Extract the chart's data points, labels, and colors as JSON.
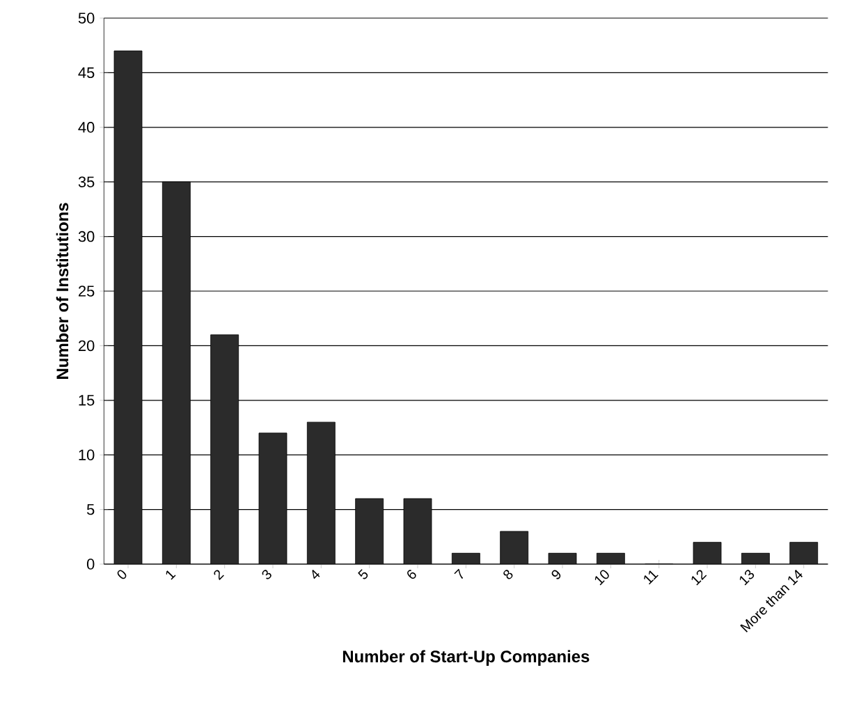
{
  "chart_data": {
    "type": "bar",
    "xlabel": "Number of Start-Up Companies",
    "ylabel": "Number of Institutions",
    "categories": [
      "0",
      "1",
      "2",
      "3",
      "4",
      "5",
      "6",
      "7",
      "8",
      "9",
      "10",
      "11",
      "12",
      "13",
      "More than 14"
    ],
    "values": [
      47,
      35,
      21,
      12,
      13,
      6,
      6,
      1,
      3,
      1,
      1,
      0,
      2,
      1,
      2
    ],
    "color": "#2b2b2b",
    "ylim": [
      0,
      50
    ],
    "yticks": [
      0,
      5,
      10,
      15,
      20,
      25,
      30,
      35,
      40,
      45,
      50
    ],
    "grid": "y"
  }
}
